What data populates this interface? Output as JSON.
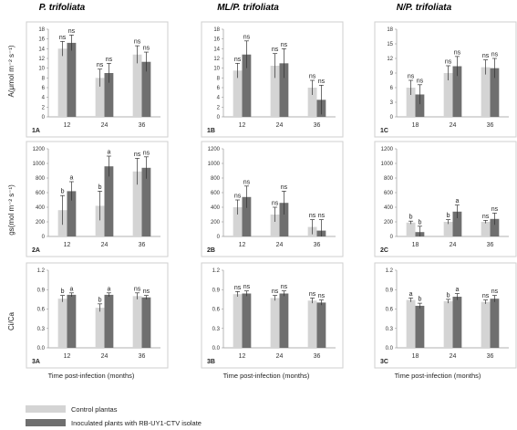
{
  "figure": {
    "column_titles": [
      "P. trifoliata",
      "ML/P. trifoliata",
      "N/P. trifoliata"
    ],
    "row_ylabels": [
      "A(μmol m⁻² s⁻¹)",
      "gs(mol m⁻² s⁻¹)",
      "Ci/Ca"
    ],
    "xlabel": "Time post-infection (months)",
    "legend": [
      {
        "label": "Control plantas",
        "color": "#d4d4d4"
      },
      {
        "label": "Inoculated plants with RB-UY1-CTV isolate",
        "color": "#6f6f6f"
      }
    ]
  },
  "chart_data": [
    {
      "panel": "1A",
      "row": 0,
      "col": 0,
      "type": "bar",
      "categories": [
        "12",
        "24",
        "36"
      ],
      "ylim": [
        0,
        18
      ],
      "yticks": [
        0,
        2,
        4,
        6,
        8,
        10,
        12,
        14,
        16,
        18
      ],
      "series": [
        {
          "values": [
            14,
            8,
            12.8
          ],
          "errors": [
            1.5,
            1.8,
            1.8
          ]
        },
        {
          "values": [
            15.2,
            9,
            11.3
          ],
          "errors": [
            1.6,
            2,
            2
          ]
        }
      ],
      "labels": [
        [
          "ns",
          "ns"
        ],
        [
          "ns",
          "ns"
        ],
        [
          "ns",
          "ns"
        ]
      ]
    },
    {
      "panel": "1B",
      "row": 0,
      "col": 1,
      "type": "bar",
      "categories": [
        "12",
        "24",
        "36"
      ],
      "ylim": [
        0,
        18
      ],
      "yticks": [
        0,
        2,
        4,
        6,
        8,
        10,
        12,
        14,
        16,
        18
      ],
      "series": [
        {
          "values": [
            9.5,
            10.5,
            6
          ],
          "errors": [
            1.5,
            2.5,
            1.5
          ]
        },
        {
          "values": [
            12.8,
            11,
            3.5
          ],
          "errors": [
            2.8,
            3,
            3
          ]
        }
      ],
      "labels": [
        [
          "ns",
          "ns"
        ],
        [
          "ns",
          "ns"
        ],
        [
          "ns",
          "ns"
        ]
      ]
    },
    {
      "panel": "1C",
      "row": 0,
      "col": 2,
      "type": "bar",
      "categories": [
        "18",
        "24",
        "36"
      ],
      "ylim": [
        0,
        18
      ],
      "yticks": [
        0,
        3,
        6,
        9,
        12,
        15,
        18
      ],
      "series": [
        {
          "values": [
            6,
            9,
            10.2
          ],
          "errors": [
            1.5,
            1.5,
            1.5
          ]
        },
        {
          "values": [
            4.6,
            10.4,
            10
          ],
          "errors": [
            2,
            2,
            2
          ]
        }
      ],
      "labels": [
        [
          "ns",
          "ns"
        ],
        [
          "ns",
          "ns"
        ],
        [
          "ns",
          "ns"
        ]
      ]
    },
    {
      "panel": "2A",
      "row": 1,
      "col": 0,
      "type": "bar",
      "categories": [
        "12",
        "24",
        "36"
      ],
      "ylim": [
        0,
        1200
      ],
      "yticks": [
        0,
        200,
        400,
        600,
        800,
        1000,
        1200
      ],
      "series": [
        {
          "values": [
            360,
            420,
            890
          ],
          "errors": [
            200,
            200,
            180
          ]
        },
        {
          "values": [
            620,
            960,
            940
          ],
          "errors": [
            130,
            140,
            150
          ]
        }
      ],
      "labels": [
        [
          "b",
          "a"
        ],
        [
          "b",
          "a"
        ],
        [
          "ns",
          "ns"
        ]
      ]
    },
    {
      "panel": "2B",
      "row": 1,
      "col": 1,
      "type": "bar",
      "categories": [
        "12",
        "24",
        "36"
      ],
      "ylim": [
        0,
        1200
      ],
      "yticks": [
        0,
        200,
        400,
        600,
        800,
        1000,
        1200
      ],
      "series": [
        {
          "values": [
            400,
            300,
            130
          ],
          "errors": [
            100,
            100,
            100
          ]
        },
        {
          "values": [
            540,
            460,
            80
          ],
          "errors": [
            150,
            160,
            150
          ]
        }
      ],
      "labels": [
        [
          "ns",
          "ns"
        ],
        [
          "ns",
          "ns"
        ],
        [
          "ns",
          "ns"
        ]
      ]
    },
    {
      "panel": "2C",
      "row": 1,
      "col": 2,
      "type": "bar",
      "categories": [
        "18",
        "24",
        "36"
      ],
      "ylim": [
        0,
        1200
      ],
      "yticks": [
        0,
        200,
        400,
        600,
        800,
        1000,
        1200
      ],
      "series": [
        {
          "values": [
            190,
            200,
            200
          ],
          "errors": [
            20,
            30,
            20
          ]
        },
        {
          "values": [
            60,
            340,
            240
          ],
          "errors": [
            80,
            90,
            80
          ]
        }
      ],
      "labels": [
        [
          "b",
          "b"
        ],
        [
          "b",
          "a"
        ],
        [
          "ns",
          "ns"
        ]
      ]
    },
    {
      "panel": "3A",
      "row": 2,
      "col": 0,
      "type": "bar",
      "categories": [
        "12",
        "24",
        "36"
      ],
      "ylim": [
        0,
        1.2
      ],
      "yticks": [
        0,
        0.3,
        0.6,
        0.9,
        1.2
      ],
      "series": [
        {
          "values": [
            0.76,
            0.62,
            0.8
          ],
          "errors": [
            0.05,
            0.06,
            0.05
          ]
        },
        {
          "values": [
            0.82,
            0.82,
            0.78
          ],
          "errors": [
            0.03,
            0.03,
            0.03
          ]
        }
      ],
      "labels": [
        [
          "b",
          "a"
        ],
        [
          "b",
          "a"
        ],
        [
          "ns",
          "ns"
        ]
      ]
    },
    {
      "panel": "3B",
      "row": 2,
      "col": 1,
      "type": "bar",
      "categories": [
        "12",
        "24",
        "36"
      ],
      "ylim": [
        0,
        1.2
      ],
      "yticks": [
        0,
        0.3,
        0.6,
        0.9,
        1.2
      ],
      "series": [
        {
          "values": [
            0.83,
            0.77,
            0.73
          ],
          "errors": [
            0.04,
            0.04,
            0.04
          ]
        },
        {
          "values": [
            0.84,
            0.84,
            0.7
          ],
          "errors": [
            0.04,
            0.04,
            0.04
          ]
        }
      ],
      "labels": [
        [
          "ns",
          "ns"
        ],
        [
          "ns",
          "ns"
        ],
        [
          "ns",
          "ns"
        ]
      ]
    },
    {
      "panel": "3C",
      "row": 2,
      "col": 2,
      "type": "bar",
      "categories": [
        "18",
        "24",
        "36"
      ],
      "ylim": [
        0,
        1.2
      ],
      "yticks": [
        0,
        0.3,
        0.6,
        0.9,
        1.2
      ],
      "series": [
        {
          "values": [
            0.74,
            0.72,
            0.71
          ],
          "errors": [
            0.03,
            0.03,
            0.03
          ]
        },
        {
          "values": [
            0.65,
            0.79,
            0.76
          ],
          "errors": [
            0.04,
            0.05,
            0.05
          ]
        }
      ],
      "labels": [
        [
          "a",
          "b"
        ],
        [
          "b",
          "a"
        ],
        [
          "ns",
          "ns"
        ]
      ]
    }
  ]
}
